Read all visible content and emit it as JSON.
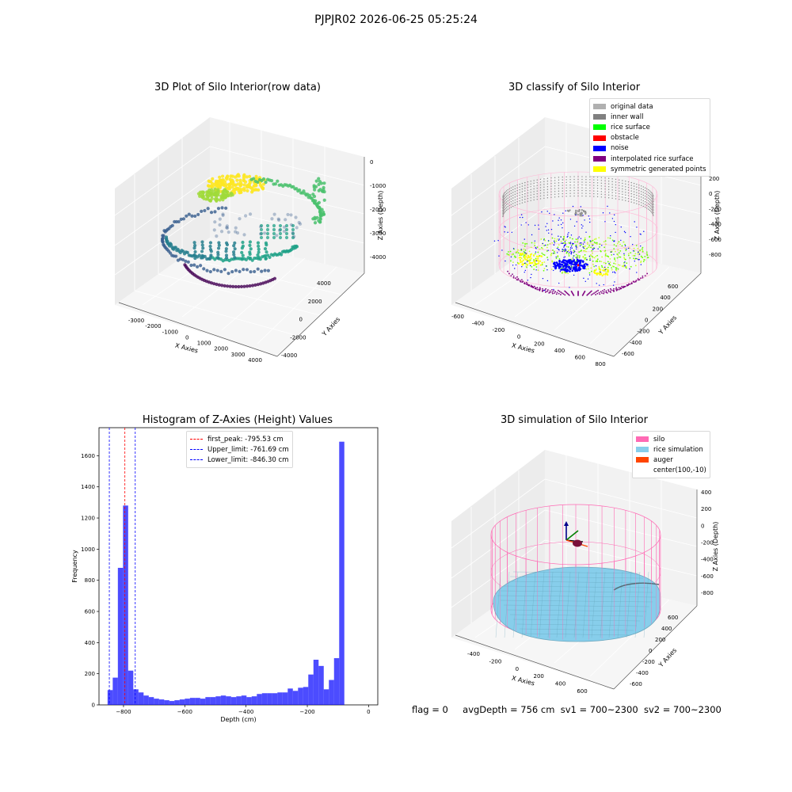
{
  "suptitle": "PJPJR02 2026-06-25 05:25:24",
  "footer": {
    "flag": "flag = 0",
    "avgDepth": "avgDepth = 756 cm",
    "sv1": "sv1 = 700~2300",
    "sv2": "sv2 = 700~2300"
  },
  "chart_data": [
    {
      "type": "scatter",
      "title": "3D Plot of Silo Interior(row data)",
      "xlabel": "X Axies",
      "ylabel": "Y Axies",
      "zlabel": "Z Axies (Depth)",
      "x_ticks": [
        "-3000",
        "-2000",
        "-1000",
        "0",
        "1000",
        "2000",
        "3000",
        "4000"
      ],
      "y_ticks": [
        "-4000",
        "-2000",
        "0",
        "2000",
        "4000"
      ],
      "z_ticks": [
        "0",
        "-1000",
        "-2000",
        "-3000",
        "-4000"
      ],
      "colormap": "viridis"
    },
    {
      "type": "scatter",
      "title": "3D classify of Silo Interior",
      "xlabel": "X Axies",
      "ylabel": "Y Axies",
      "zlabel": "Z Axies (Depth)",
      "x_ticks": [
        "-600",
        "-400",
        "-200",
        "0",
        "200",
        "400",
        "600",
        "800"
      ],
      "y_ticks": [
        "-600",
        "-400",
        "-200",
        "0",
        "200",
        "400",
        "600"
      ],
      "z_ticks": [
        "200",
        "0",
        "-200",
        "-400",
        "-600",
        "-800"
      ],
      "legend": [
        {
          "name": "original data",
          "color": "#b0b0b0"
        },
        {
          "name": "inner wall",
          "color": "#808080"
        },
        {
          "name": "rice surface",
          "color": "#00ff00"
        },
        {
          "name": "obstacle",
          "color": "#ff0000"
        },
        {
          "name": "noise",
          "color": "#0000ff"
        },
        {
          "name": "interpolated rice surface",
          "color": "#800080"
        },
        {
          "name": "symmetric generated points",
          "color": "#ffff00"
        }
      ]
    },
    {
      "type": "bar",
      "title": "Histogram of Z-Axies (Height) Values",
      "xlabel": "Depth (cm)",
      "ylabel": "Frequency",
      "xlim": [
        -880,
        30
      ],
      "ylim": [
        0,
        1780
      ],
      "x_ticks": [
        -800,
        -600,
        -400,
        -200,
        0
      ],
      "y_ticks": [
        0,
        200,
        400,
        600,
        800,
        1000,
        1200,
        1400,
        1600
      ],
      "bin_start": -852,
      "bin_width": 16.8,
      "values": [
        95,
        175,
        880,
        1280,
        220,
        100,
        80,
        60,
        50,
        40,
        35,
        30,
        25,
        30,
        35,
        40,
        45,
        45,
        40,
        50,
        50,
        55,
        60,
        55,
        50,
        55,
        60,
        50,
        55,
        70,
        75,
        75,
        75,
        80,
        80,
        105,
        90,
        110,
        115,
        195,
        290,
        250,
        100,
        160,
        300,
        1690
      ],
      "bar_color": "#0000ff",
      "lines": [
        {
          "label": "first_peak: -795.53 cm",
          "x": -795.53,
          "color": "#ff0000"
        },
        {
          "label": "Upper_limit: -761.69 cm",
          "x": -761.69,
          "color": "#0000ff"
        },
        {
          "label": "Lower_limit: -846.30 cm",
          "x": -846.3,
          "color": "#0000ff"
        }
      ]
    },
    {
      "type": "surface",
      "title": "3D simulation of Silo Interior",
      "xlabel": "X Axies",
      "ylabel": "Y Axies",
      "zlabel": "Z Axies (Depth)",
      "x_ticks": [
        "-400",
        "-200",
        "0",
        "200",
        "400",
        "600"
      ],
      "y_ticks": [
        "-600",
        "-400",
        "-200",
        "0",
        "200",
        "400",
        "600"
      ],
      "z_ticks": [
        "400",
        "200",
        "0",
        "-200",
        "-400",
        "-600",
        "-800"
      ],
      "legend": [
        {
          "name": "silo",
          "color": "#ff69b4"
        },
        {
          "name": "rice simulation",
          "color": "#87ceeb"
        },
        {
          "name": "auger",
          "color": "#ff4500"
        },
        {
          "name": "center(100,-10)",
          "color": ""
        }
      ]
    }
  ]
}
